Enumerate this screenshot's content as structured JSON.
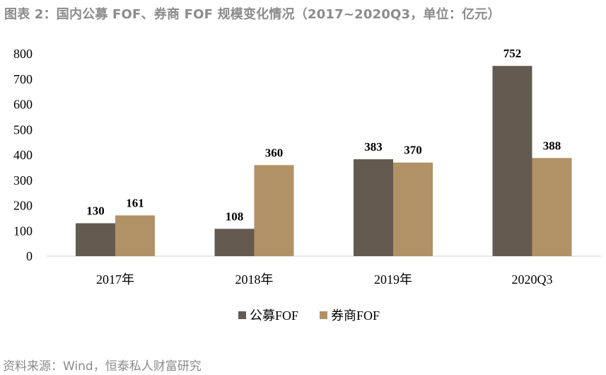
{
  "title": "图表 2：国内公募 FOF、券商 FOF 规模变化情况（2017~2020Q3，单位：亿元）",
  "source": "资料来源：Wind，恒泰私人财富研究",
  "chart_data": {
    "type": "bar",
    "categories": [
      "2017年",
      "2018年",
      "2019年",
      "2020Q3"
    ],
    "series": [
      {
        "name": "公募FOF",
        "values": [
          130,
          108,
          383,
          752
        ],
        "color": "#645a4f"
      },
      {
        "name": "券商FOF",
        "values": [
          161,
          360,
          370,
          388
        ],
        "color": "#b19266"
      }
    ],
    "ylim": [
      0,
      800
    ],
    "yticks": [
      0,
      100,
      200,
      300,
      400,
      500,
      600,
      700,
      800
    ],
    "grid": false,
    "legend_position": "bottom-center",
    "data_labels": true
  }
}
